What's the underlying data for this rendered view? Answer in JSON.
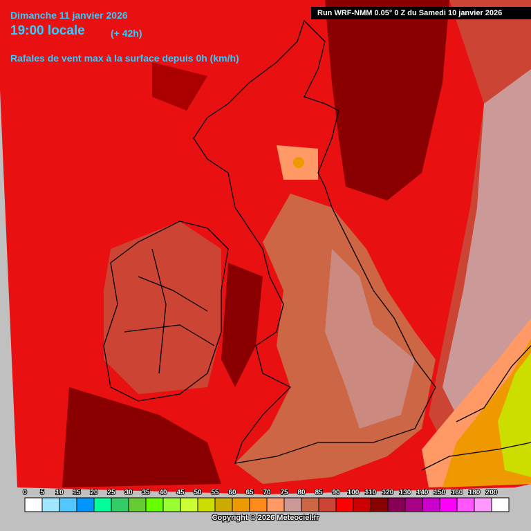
{
  "header": {
    "date": "Dimanche 11 janvier 2026",
    "hour": "19:00 locale",
    "lead": "(+ 42h)",
    "parameter": "Rafales de vent max à la surface depuis 0h (km/h)",
    "run": "Run WRF-NMM 0.05° 0 Z du Samedi 10 janvier 2026"
  },
  "legend": [
    {
      "value": 0,
      "color": "#ffffff"
    },
    {
      "value": 5,
      "color": "#a0e6ff"
    },
    {
      "value": 10,
      "color": "#50c8ff"
    },
    {
      "value": 15,
      "color": "#0096ff"
    },
    {
      "value": 20,
      "color": "#00ff99"
    },
    {
      "value": 25,
      "color": "#33cc66"
    },
    {
      "value": 30,
      "color": "#66cc33"
    },
    {
      "value": 35,
      "color": "#66ff00"
    },
    {
      "value": 40,
      "color": "#99ff33"
    },
    {
      "value": 45,
      "color": "#ccff33"
    },
    {
      "value": 50,
      "color": "#ccdd00"
    },
    {
      "value": 55,
      "color": "#ccaa00"
    },
    {
      "value": 60,
      "color": "#ee9900"
    },
    {
      "value": 65,
      "color": "#ff8c1a"
    },
    {
      "value": 70,
      "color": "#ff9966"
    },
    {
      "value": 75,
      "color": "#cc9999"
    },
    {
      "value": 80,
      "color": "#cc6644"
    },
    {
      "value": 85,
      "color": "#cc4433"
    },
    {
      "value": 90,
      "color": "#ff0000"
    },
    {
      "value": 100,
      "color": "#cc0000"
    },
    {
      "value": 110,
      "color": "#880000"
    },
    {
      "value": 120,
      "color": "#880055"
    },
    {
      "value": 130,
      "color": "#aa0088"
    },
    {
      "value": 140,
      "color": "#cc00cc"
    },
    {
      "value": 150,
      "color": "#ff00ff"
    },
    {
      "value": 160,
      "color": "#ff55ff"
    },
    {
      "value": 180,
      "color": "#ff99ff"
    },
    {
      "value": 200,
      "color": "#ffffff"
    }
  ],
  "footer": {
    "copyright": "Copyright © 2026 Meteociel.fr"
  }
}
